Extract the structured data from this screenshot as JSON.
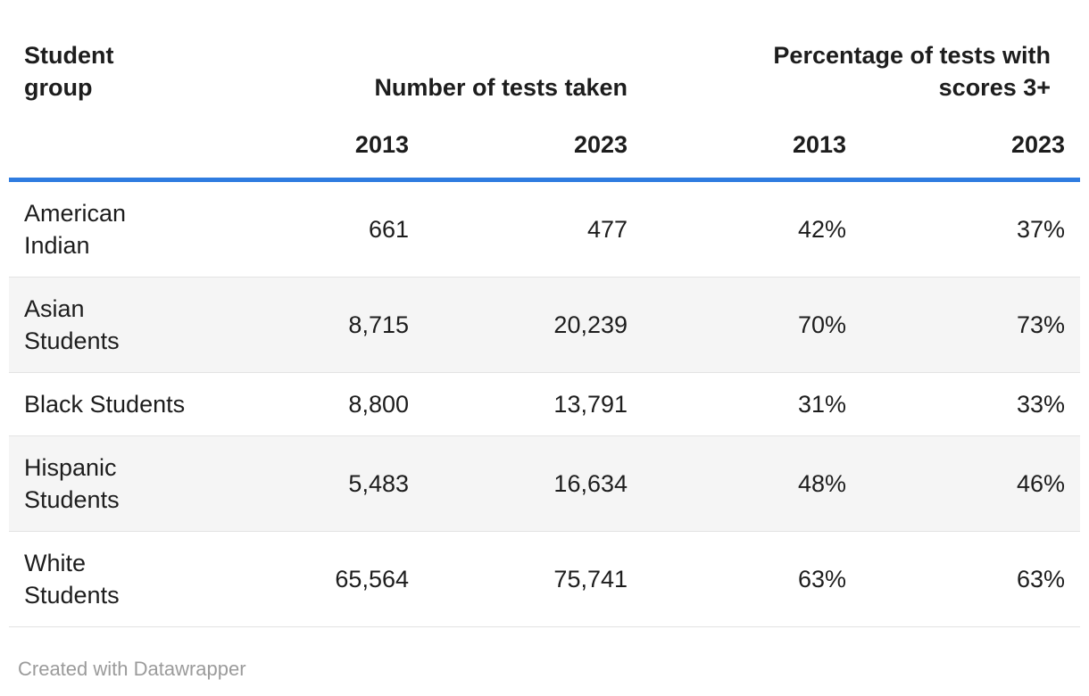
{
  "table": {
    "header": {
      "row_label": "Student\ngroup",
      "group_tests": "Number of tests taken",
      "group_pct": "Percentage of tests with\nscores 3+",
      "years": {
        "tests_2013": "2013",
        "tests_2023": "2023",
        "pct_2013": "2013",
        "pct_2023": "2023"
      }
    },
    "rows": [
      {
        "label": "American\nIndian",
        "tests_2013": "661",
        "tests_2023": "477",
        "pct_2013": "42%",
        "pct_2023": "37%"
      },
      {
        "label": "Asian\nStudents",
        "tests_2013": "8,715",
        "tests_2023": "20,239",
        "pct_2013": "70%",
        "pct_2023": "73%"
      },
      {
        "label": "Black Students",
        "tests_2013": "8,800",
        "tests_2023": "13,791",
        "pct_2013": "31%",
        "pct_2023": "33%"
      },
      {
        "label": "Hispanic\nStudents",
        "tests_2013": "5,483",
        "tests_2023": "16,634",
        "pct_2013": "48%",
        "pct_2023": "46%"
      },
      {
        "label": "White\nStudents",
        "tests_2013": "65,564",
        "tests_2023": "75,741",
        "pct_2013": "63%",
        "pct_2023": "63%"
      }
    ]
  },
  "footer": {
    "attribution": "Created with Datawrapper"
  },
  "colors": {
    "accent_rule": "#2f7ce0",
    "text": "#1d1d1d",
    "alt_row_bg": "#f5f5f5",
    "row_border": "#e3e3e3",
    "footer_text": "#9b9b9b"
  },
  "chart_data": {
    "type": "table",
    "title": "",
    "categories": [
      "American Indian",
      "Asian Students",
      "Black Students",
      "Hispanic Students",
      "White Students"
    ],
    "column_groups": [
      "Student group",
      "Number of tests taken",
      "Percentage of tests with scores 3+"
    ],
    "series": [
      {
        "name": "Number of tests taken — 2013",
        "values": [
          661,
          8715,
          8800,
          5483,
          65564
        ]
      },
      {
        "name": "Number of tests taken — 2023",
        "values": [
          477,
          20239,
          13791,
          16634,
          75741
        ]
      },
      {
        "name": "Percentage of tests with scores 3+ — 2013",
        "values": [
          42,
          70,
          31,
          48,
          63
        ],
        "unit": "%"
      },
      {
        "name": "Percentage of tests with scores 3+ — 2023",
        "values": [
          37,
          73,
          33,
          46,
          63
        ],
        "unit": "%"
      }
    ],
    "layout": {
      "zebra_striping": true,
      "header_rule_color": "#2f7ce0",
      "numeric_alignment": "right"
    }
  }
}
